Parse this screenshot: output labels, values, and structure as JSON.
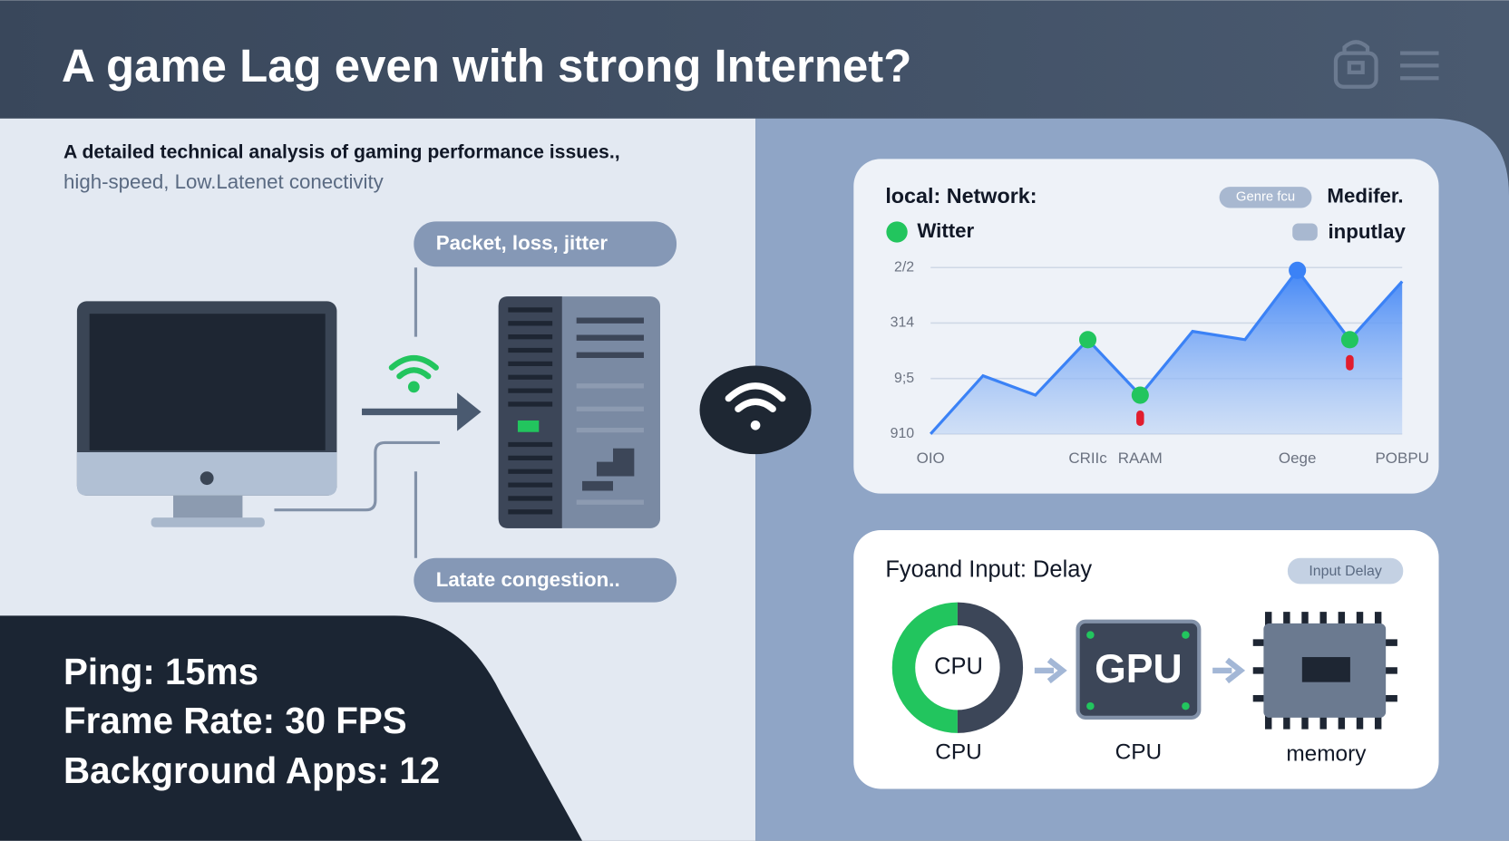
{
  "header": {
    "title": "A game Lag even with strong Internet?"
  },
  "intro": {
    "line1": "A detailed technical analysis of gaming performance issues.,",
    "line2": "high-speed, Low.Latenet conectivity"
  },
  "diagram": {
    "top_label": "Packet, loss, jitter",
    "bottom_label": "Latate  congestion.."
  },
  "stats": [
    "Ping: 15ms",
    "Frame Rate: 30 FPS",
    "Background Apps: 12"
  ],
  "network_panel": {
    "pill": "Genre fcu",
    "right_label": "Medifer.",
    "legend": [
      "Witter",
      "inputlay"
    ]
  },
  "chart_data": {
    "type": "line",
    "title": "local: Network:",
    "categories": [
      "OIO",
      null,
      null,
      "CRIIc",
      "RAAM",
      null,
      null,
      "Oege",
      null,
      "POBPU"
    ],
    "series": [
      {
        "color": "#3b82f6",
        "values": [
          0,
          1.05,
          0.7,
          1.7,
          0.7,
          1.85,
          1.7,
          2.95,
          1.7,
          2.75
        ],
        "marker_colors": [
          null,
          null,
          null,
          "#22c55e",
          "#22c55e",
          null,
          null,
          "#3b82f6",
          "#22c55e",
          null
        ],
        "alerts": [
          false,
          false,
          false,
          false,
          true,
          false,
          false,
          false,
          true,
          false
        ]
      }
    ],
    "ylim": [
      0,
      3
    ],
    "yticks": [
      {
        "value": 0,
        "label": "910"
      },
      {
        "value": 1,
        "label": "9;5"
      },
      {
        "value": 2,
        "label": "314"
      },
      {
        "value": 3,
        "label": "2/2"
      }
    ],
    "grid": true
  },
  "delay_panel": {
    "title": "Fyoand Input: Delay",
    "pill": "Input Delay",
    "ring_label": "CPU",
    "chip_label": "GPU",
    "captions": [
      "CPU",
      "CPU",
      "memory"
    ]
  }
}
